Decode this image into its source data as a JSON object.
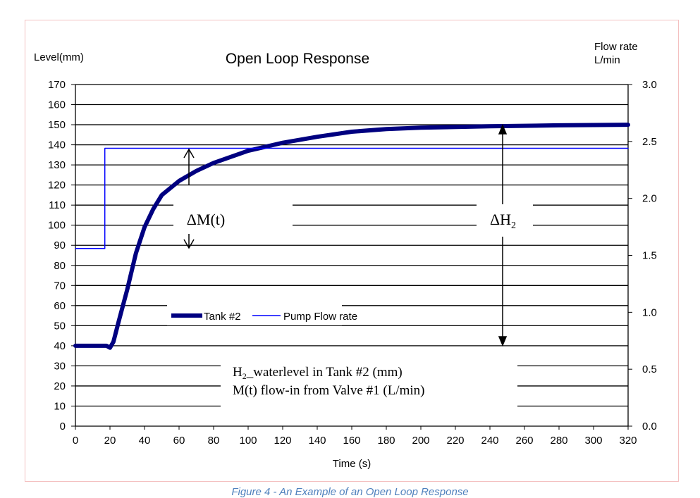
{
  "chart_data": {
    "type": "line",
    "title": "Open Loop Response",
    "xlabel": "Time (s)",
    "ylabel": "Level(mm)",
    "y2label_line1": "Flow rate",
    "y2label_line2": "L/min",
    "xlim": [
      0,
      320
    ],
    "ylim": [
      0,
      170
    ],
    "y2lim": [
      0,
      3.0
    ],
    "grid": "horizontal",
    "legend_placement": "center-left",
    "xticks": [
      "0",
      "20",
      "40",
      "60",
      "80",
      "100",
      "120",
      "140",
      "160",
      "180",
      "200",
      "220",
      "240",
      "260",
      "280",
      "300",
      "320"
    ],
    "yticks": [
      "0",
      "10",
      "20",
      "30",
      "40",
      "50",
      "60",
      "70",
      "80",
      "90",
      "100",
      "110",
      "120",
      "130",
      "140",
      "150",
      "160",
      "170"
    ],
    "y2ticks": [
      "0.0",
      "0.5",
      "1.0",
      "1.5",
      "2.0",
      "2.5",
      "3.0"
    ],
    "series": [
      {
        "name": "Tank #2",
        "axis": "left",
        "color": "#000080",
        "x": [
          0,
          10,
          18,
          20,
          22,
          25,
          30,
          35,
          40,
          45,
          50,
          60,
          70,
          80,
          90,
          100,
          120,
          140,
          160,
          180,
          200,
          240,
          280,
          320
        ],
        "y": [
          40,
          40,
          40,
          39,
          42,
          52,
          68,
          86,
          99,
          108,
          115,
          122,
          127,
          131,
          134,
          137,
          141,
          144,
          146.5,
          147.8,
          148.5,
          149.2,
          149.7,
          150
        ]
      },
      {
        "name": "Pump Flow rate",
        "axis": "right",
        "color": "#0000ff",
        "x": [
          0,
          17,
          17,
          320
        ],
        "y": [
          1.56,
          1.56,
          2.44,
          2.44
        ]
      }
    ],
    "annotations": {
      "delta_m": "ΔM(t)",
      "delta_h": "ΔH",
      "delta_h_sub": "2",
      "note1_sub": "2",
      "note1_pre": "H",
      "note1_rest": "_waterlevel in Tank #2 (mm)",
      "note2": "M(t) flow-in from Valve #1 (L/min)"
    }
  },
  "caption": "Figure 4 - An Example of an Open Loop Response"
}
